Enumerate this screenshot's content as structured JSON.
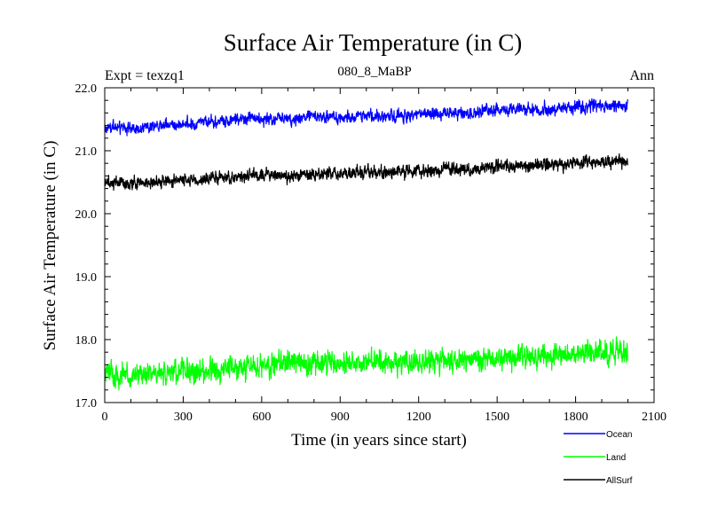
{
  "chart_data": {
    "type": "line",
    "title": "Surface Air Temperature (in C)",
    "subtitle": "080_8_MaBP",
    "expt_label": "Expt = texzq1",
    "season_label": "Ann",
    "xlabel": "Time (in years since start)",
    "ylabel": "Surface Air Temperature (in C)",
    "xlim": [
      0,
      2100
    ],
    "ylim": [
      17.0,
      22.0
    ],
    "x_ticks": [
      0,
      300,
      600,
      900,
      1200,
      1500,
      1800,
      2100
    ],
    "x_tick_labels": [
      "0",
      "300",
      "600",
      "900",
      "1200",
      "1500",
      "1800",
      "2100"
    ],
    "y_ticks": [
      17.0,
      18.0,
      19.0,
      20.0,
      21.0,
      22.0
    ],
    "y_tick_labels": [
      "17.0",
      "18.0",
      "19.0",
      "20.0",
      "21.0",
      "22.0"
    ],
    "x_range": [
      0,
      2000
    ],
    "series": [
      {
        "name": "Ocean",
        "color": "#0000ff",
        "x": [
          0,
          100,
          200,
          300,
          400,
          500,
          600,
          700,
          800,
          900,
          1000,
          1100,
          1200,
          1300,
          1400,
          1500,
          1600,
          1700,
          1800,
          1900,
          2000
        ],
        "values": [
          21.38,
          21.35,
          21.4,
          21.42,
          21.45,
          21.5,
          21.5,
          21.5,
          21.55,
          21.52,
          21.55,
          21.56,
          21.58,
          21.6,
          21.6,
          21.65,
          21.65,
          21.65,
          21.68,
          21.7,
          21.72
        ],
        "noise": 0.09
      },
      {
        "name": "Land",
        "color": "#00ff00",
        "x": [
          0,
          100,
          200,
          300,
          400,
          500,
          600,
          700,
          800,
          900,
          1000,
          1100,
          1200,
          1300,
          1400,
          1500,
          1600,
          1700,
          1800,
          1900,
          2000
        ],
        "values": [
          17.45,
          17.42,
          17.45,
          17.5,
          17.5,
          17.55,
          17.58,
          17.6,
          17.62,
          17.62,
          17.64,
          17.65,
          17.65,
          17.66,
          17.68,
          17.7,
          17.72,
          17.75,
          17.78,
          17.8,
          17.82
        ],
        "noise": 0.17
      },
      {
        "name": "AllSurf",
        "color": "#000000",
        "x": [
          0,
          100,
          200,
          300,
          400,
          500,
          600,
          700,
          800,
          900,
          1000,
          1100,
          1200,
          1300,
          1400,
          1500,
          1600,
          1700,
          1800,
          1900,
          2000
        ],
        "values": [
          20.5,
          20.48,
          20.5,
          20.53,
          20.55,
          20.58,
          20.6,
          20.6,
          20.63,
          20.63,
          20.65,
          20.66,
          20.68,
          20.7,
          20.7,
          20.75,
          20.75,
          20.78,
          20.8,
          20.82,
          20.85
        ],
        "noise": 0.09
      }
    ]
  }
}
